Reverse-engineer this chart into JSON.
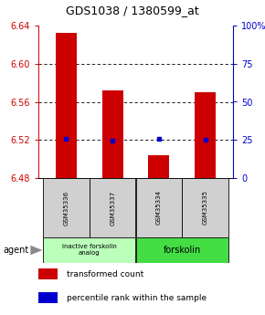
{
  "title": "GDS1038 / 1380599_at",
  "samples": [
    "GSM35336",
    "GSM35337",
    "GSM35334",
    "GSM35335"
  ],
  "bar_values": [
    6.632,
    6.572,
    6.504,
    6.57
  ],
  "bar_bottom": 6.48,
  "percentile_values": [
    6.521,
    6.519,
    6.521,
    6.52
  ],
  "ylim": [
    6.48,
    6.64
  ],
  "yticks_left": [
    6.48,
    6.52,
    6.56,
    6.6,
    6.64
  ],
  "yticks_right": [
    0,
    25,
    50,
    75,
    100
  ],
  "bar_color": "#cc0000",
  "percentile_color": "#0000cc",
  "group1_label": "inactive forskolin\nanalog",
  "group2_label": "forskolin",
  "group1_color": "#bbffbb",
  "group2_color": "#44dd44",
  "group1_samples": [
    0,
    1
  ],
  "group2_samples": [
    2,
    3
  ],
  "legend_bar_label": "transformed count",
  "legend_pct_label": "percentile rank within the sample",
  "agent_label": "agent",
  "title_fontsize": 9,
  "tick_fontsize": 7,
  "sample_fontsize": 5,
  "legend_fontsize": 6.5
}
